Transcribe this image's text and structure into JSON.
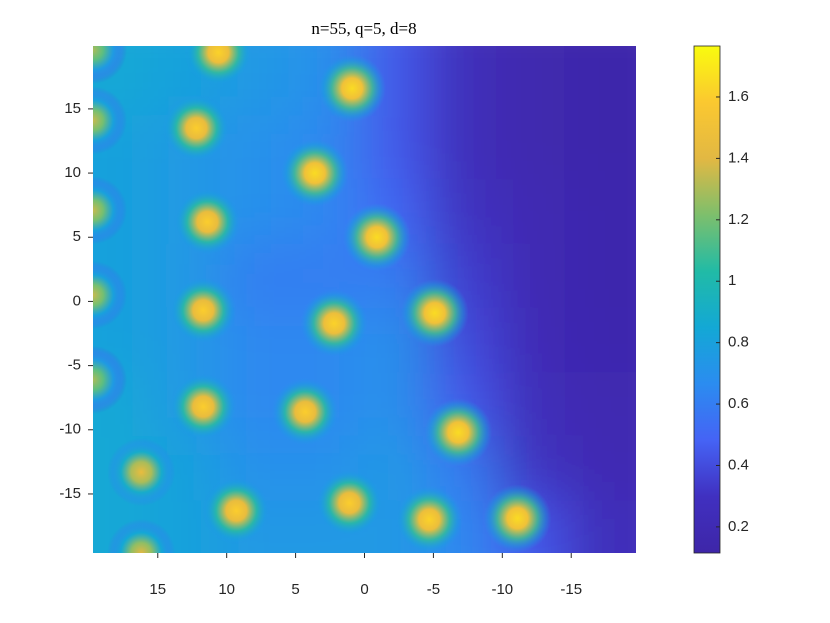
{
  "chart_data": {
    "type": "heatmap",
    "title": "n=55, q=5, d=8",
    "xlim": [
      19.7,
      -19.7
    ],
    "ylim": [
      -19.6,
      19.9
    ],
    "xticks": [
      15,
      10,
      5,
      0,
      -5,
      -10,
      -15
    ],
    "yticks": [
      -15,
      -10,
      -5,
      0,
      5,
      10,
      15
    ],
    "clim": [
      0.115,
      1.766
    ],
    "cticks": [
      0.2,
      0.4,
      0.6,
      0.8,
      1,
      1.2,
      1.4,
      1.6
    ],
    "colormap": [
      "#3e26a8",
      "#4030c0",
      "#4563f5",
      "#2b8cf0",
      "#13a8d5",
      "#21bba6",
      "#7dbf6c",
      "#e2b843",
      "#fbc830",
      "#f9fb0e"
    ],
    "field": {
      "x": [
        18,
        13,
        8,
        3,
        -2,
        -7,
        -12,
        -17
      ],
      "y": [
        17,
        12,
        7,
        2,
        -3,
        -8,
        -13,
        -18
      ],
      "z": [
        [
          0.85,
          0.8,
          0.75,
          0.7,
          0.45,
          0.25,
          0.17,
          0.14
        ],
        [
          0.8,
          0.75,
          0.7,
          0.65,
          0.45,
          0.25,
          0.17,
          0.14
        ],
        [
          0.8,
          0.75,
          0.7,
          0.65,
          0.5,
          0.3,
          0.2,
          0.15
        ],
        [
          0.8,
          0.75,
          0.6,
          0.6,
          0.6,
          0.35,
          0.2,
          0.15
        ],
        [
          0.8,
          0.75,
          0.65,
          0.65,
          0.7,
          0.4,
          0.22,
          0.16
        ],
        [
          0.85,
          0.75,
          0.65,
          0.65,
          0.7,
          0.45,
          0.25,
          0.18
        ],
        [
          0.85,
          0.8,
          0.7,
          0.7,
          0.75,
          0.6,
          0.3,
          0.2
        ],
        [
          0.85,
          0.8,
          0.75,
          0.75,
          0.75,
          0.65,
          0.45,
          0.25
        ]
      ]
    },
    "peaks": {
      "x": [
        10.6,
        0.9,
        12.2,
        3.6,
        11.4,
        -0.9,
        11.7,
        2.2,
        -5.1,
        11.7,
        4.3,
        -6.8,
        16.2,
        9.3,
        1.1,
        -4.7,
        -11.1,
        16.2,
        19.7,
        19.7,
        19.7,
        19.7,
        19.7
      ],
      "y": [
        19.4,
        16.6,
        13.5,
        10.0,
        6.2,
        5.0,
        -0.7,
        -1.7,
        -0.9,
        -8.2,
        -8.6,
        -10.2,
        -13.3,
        -16.3,
        -15.7,
        -17.0,
        -16.9,
        -19.6,
        19.6,
        14.1,
        7.1,
        0.5,
        -6.1
      ],
      "values": [
        1.62,
        1.65,
        1.6,
        1.65,
        1.6,
        1.65,
        1.6,
        1.62,
        1.65,
        1.6,
        1.6,
        1.65,
        1.45,
        1.6,
        1.6,
        1.62,
        1.65,
        1.4,
        1.3,
        1.35,
        1.35,
        1.35,
        1.3
      ]
    }
  }
}
